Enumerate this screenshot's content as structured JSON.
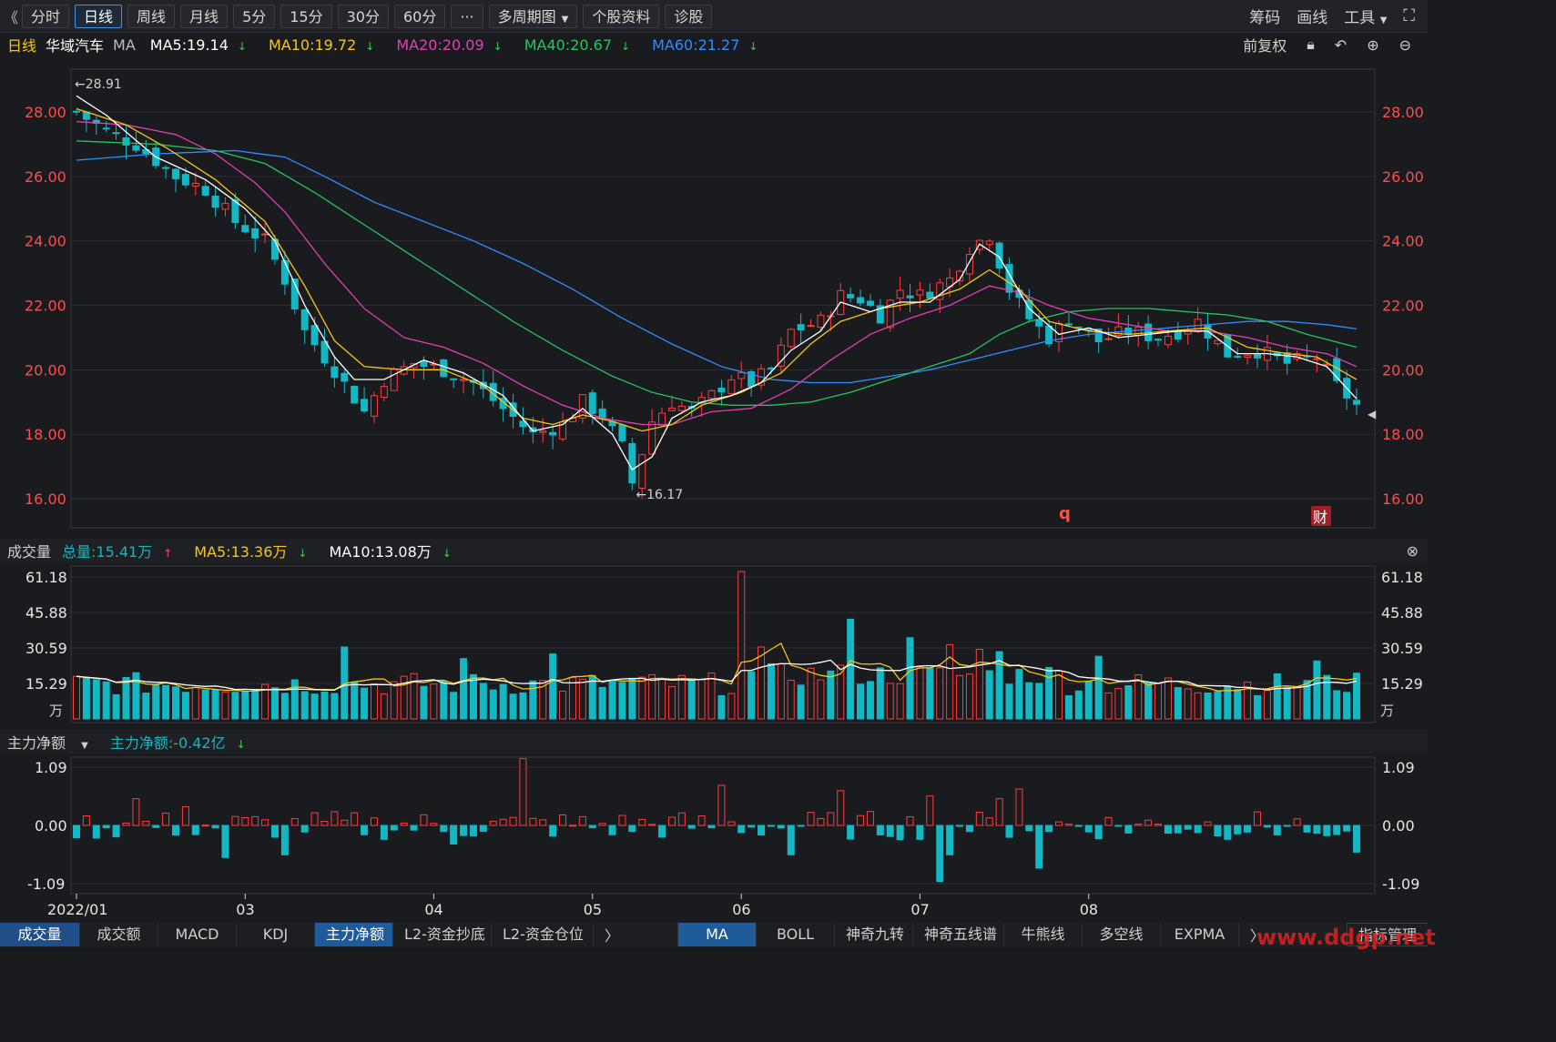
{
  "toolbar": {
    "back_icon": "《",
    "periods": [
      "分时",
      "日线",
      "周线",
      "月线",
      "5分",
      "15分",
      "30分",
      "60分"
    ],
    "active_period": "日线",
    "more_label": "···",
    "multi_period_label": "多周期图",
    "stock_info_label": "个股资料",
    "diagnose_label": "诊股",
    "chips_label": "筹码",
    "draw_label": "画线",
    "tools_label": "工具"
  },
  "ma_legend": {
    "period": "日线",
    "stock_name": "华域汽车",
    "ma_label": "MA",
    "items": [
      {
        "text": "MA5:19.14",
        "color": "#ffffff",
        "dir": "down"
      },
      {
        "text": "MA10:19.72",
        "color": "#f5c518",
        "dir": "down"
      },
      {
        "text": "MA20:20.09",
        "color": "#e040b0",
        "dir": "down"
      },
      {
        "text": "MA40:20.67",
        "color": "#22c55e",
        "dir": "down"
      },
      {
        "text": "MA60:21.27",
        "color": "#2f8cff",
        "dir": "down"
      }
    ],
    "adjust_label": "前复权"
  },
  "price_chart": {
    "y_ticks": [
      "28.00",
      "26.00",
      "24.00",
      "22.00",
      "20.00",
      "18.00",
      "16.00"
    ],
    "high_marker": "28.91",
    "low_marker": "16.17",
    "q_marker": "q",
    "cai_marker": "财"
  },
  "volume_legend": {
    "title": "成交量",
    "total": "总量:15.41万",
    "ma5": "MA5:13.36万",
    "ma10": "MA10:13.08万"
  },
  "volume_chart": {
    "y_ticks": [
      "61.18",
      "45.88",
      "30.59",
      "15.29"
    ],
    "unit": "万"
  },
  "flow_legend": {
    "title": "主力净额",
    "value": "主力净额:-0.42亿"
  },
  "flow_chart": {
    "y_ticks": [
      "1.09",
      "0.00",
      "-1.09"
    ]
  },
  "x_axis": [
    "2022/01",
    "03",
    "04",
    "05",
    "06",
    "07",
    "08"
  ],
  "bottom_tabs_left": [
    "成交量",
    "成交额",
    "MACD",
    "KDJ",
    "主力净额",
    "L2-资金抄底",
    "L2-资金仓位"
  ],
  "bottom_tabs_right": [
    "MA",
    "BOLL",
    "神奇九转",
    "神奇五线谱",
    "牛熊线",
    "多空线",
    "EXPMA"
  ],
  "indicator_mgmt_label": "指标管理",
  "watermark": "www.ddgp.net",
  "chart_data": {
    "type": "candlestick",
    "ylim": [
      15.6,
      28.9
    ],
    "days": 130,
    "month_labels": [
      {
        "label": "2022/01",
        "day": 0
      },
      {
        "label": "03",
        "day": 17
      },
      {
        "label": "04",
        "day": 36
      },
      {
        "label": "05",
        "day": 52
      },
      {
        "label": "06",
        "day": 67
      },
      {
        "label": "07",
        "day": 85
      },
      {
        "label": "08",
        "day": 102
      }
    ],
    "close_anchors": [
      [
        0,
        28.0
      ],
      [
        3,
        27.4
      ],
      [
        6,
        27.0
      ],
      [
        10,
        26.0
      ],
      [
        13,
        25.6
      ],
      [
        16,
        24.6
      ],
      [
        19,
        24.0
      ],
      [
        21,
        22.8
      ],
      [
        23,
        21.2
      ],
      [
        26,
        20.0
      ],
      [
        29,
        18.7
      ],
      [
        31,
        19.7
      ],
      [
        34,
        20.2
      ],
      [
        37,
        20.0
      ],
      [
        40,
        19.6
      ],
      [
        43,
        18.8
      ],
      [
        46,
        18.0
      ],
      [
        49,
        18.3
      ],
      [
        51,
        19.0
      ],
      [
        53,
        18.6
      ],
      [
        55,
        17.6
      ],
      [
        56,
        16.5
      ],
      [
        58,
        18.4
      ],
      [
        60,
        19.0
      ],
      [
        62,
        18.7
      ],
      [
        64,
        19.2
      ],
      [
        66,
        19.8
      ],
      [
        68,
        19.6
      ],
      [
        70,
        20.0
      ],
      [
        72,
        21.2
      ],
      [
        75,
        21.5
      ],
      [
        77,
        22.3
      ],
      [
        79,
        22.2
      ],
      [
        81,
        21.7
      ],
      [
        83,
        22.5
      ],
      [
        85,
        22.3
      ],
      [
        88,
        22.8
      ],
      [
        90,
        23.8
      ],
      [
        92,
        24.2
      ],
      [
        94,
        22.5
      ],
      [
        96,
        21.6
      ],
      [
        98,
        21.0
      ],
      [
        100,
        21.6
      ],
      [
        103,
        20.9
      ],
      [
        106,
        21.2
      ],
      [
        109,
        21.0
      ],
      [
        111,
        21.2
      ],
      [
        113,
        21.5
      ],
      [
        116,
        20.5
      ],
      [
        119,
        20.6
      ],
      [
        122,
        20.2
      ],
      [
        125,
        20.4
      ],
      [
        127,
        19.5
      ],
      [
        129,
        18.9
      ]
    ],
    "ma5": [
      [
        0,
        28.5
      ],
      [
        3,
        27.9
      ],
      [
        8,
        26.6
      ],
      [
        13,
        25.9
      ],
      [
        17,
        25.0
      ],
      [
        20,
        24.0
      ],
      [
        23,
        22.0
      ],
      [
        26,
        20.4
      ],
      [
        28,
        19.7
      ],
      [
        31,
        19.7
      ],
      [
        35,
        20.3
      ],
      [
        39,
        19.9
      ],
      [
        43,
        19.2
      ],
      [
        46,
        18.1
      ],
      [
        49,
        18.3
      ],
      [
        51,
        18.8
      ],
      [
        54,
        18.0
      ],
      [
        56,
        16.9
      ],
      [
        58,
        17.3
      ],
      [
        60,
        18.5
      ],
      [
        63,
        19.0
      ],
      [
        66,
        19.2
      ],
      [
        69,
        19.6
      ],
      [
        72,
        20.6
      ],
      [
        75,
        21.2
      ],
      [
        77,
        22.1
      ],
      [
        80,
        21.8
      ],
      [
        83,
        22.1
      ],
      [
        86,
        22.1
      ],
      [
        89,
        22.8
      ],
      [
        91,
        23.9
      ],
      [
        93,
        23.5
      ],
      [
        96,
        21.9
      ],
      [
        99,
        21.1
      ],
      [
        102,
        21.3
      ],
      [
        105,
        21.0
      ],
      [
        108,
        21.1
      ],
      [
        111,
        21.2
      ],
      [
        114,
        21.2
      ],
      [
        117,
        20.5
      ],
      [
        120,
        20.5
      ],
      [
        123,
        20.4
      ],
      [
        126,
        20.1
      ],
      [
        129,
        19.1
      ]
    ],
    "ma10": [
      [
        0,
        28.1
      ],
      [
        5,
        27.6
      ],
      [
        9,
        26.9
      ],
      [
        14,
        25.9
      ],
      [
        19,
        24.6
      ],
      [
        23,
        22.6
      ],
      [
        26,
        20.9
      ],
      [
        29,
        20.1
      ],
      [
        33,
        20.0
      ],
      [
        37,
        20.0
      ],
      [
        41,
        19.5
      ],
      [
        45,
        18.5
      ],
      [
        48,
        18.3
      ],
      [
        51,
        18.6
      ],
      [
        54,
        18.4
      ],
      [
        57,
        18.1
      ],
      [
        60,
        18.3
      ],
      [
        63,
        18.9
      ],
      [
        67,
        19.3
      ],
      [
        71,
        19.9
      ],
      [
        74,
        20.8
      ],
      [
        77,
        21.5
      ],
      [
        81,
        21.9
      ],
      [
        85,
        22.1
      ],
      [
        89,
        22.5
      ],
      [
        92,
        23.1
      ],
      [
        95,
        22.5
      ],
      [
        98,
        21.5
      ],
      [
        102,
        21.2
      ],
      [
        106,
        21.1
      ],
      [
        110,
        21.2
      ],
      [
        114,
        21.3
      ],
      [
        118,
        20.7
      ],
      [
        122,
        20.5
      ],
      [
        125,
        20.4
      ],
      [
        129,
        19.7
      ]
    ],
    "ma20": [
      [
        0,
        27.7
      ],
      [
        5,
        27.6
      ],
      [
        10,
        27.3
      ],
      [
        14,
        26.7
      ],
      [
        18,
        25.8
      ],
      [
        21,
        24.9
      ],
      [
        25,
        23.3
      ],
      [
        29,
        21.9
      ],
      [
        33,
        21.0
      ],
      [
        37,
        20.7
      ],
      [
        41,
        20.2
      ],
      [
        45,
        19.5
      ],
      [
        49,
        18.9
      ],
      [
        53,
        18.5
      ],
      [
        57,
        18.3
      ],
      [
        60,
        18.3
      ],
      [
        64,
        18.7
      ],
      [
        68,
        18.8
      ],
      [
        72,
        19.4
      ],
      [
        76,
        20.3
      ],
      [
        80,
        21.1
      ],
      [
        84,
        21.6
      ],
      [
        88,
        22.0
      ],
      [
        92,
        22.6
      ],
      [
        95,
        22.4
      ],
      [
        98,
        22.0
      ],
      [
        102,
        21.6
      ],
      [
        106,
        21.4
      ],
      [
        110,
        21.2
      ],
      [
        114,
        21.2
      ],
      [
        118,
        21.0
      ],
      [
        122,
        20.7
      ],
      [
        126,
        20.5
      ],
      [
        129,
        20.1
      ]
    ],
    "ma40": [
      [
        0,
        27.1
      ],
      [
        8,
        27.0
      ],
      [
        14,
        26.8
      ],
      [
        19,
        26.4
      ],
      [
        24,
        25.5
      ],
      [
        29,
        24.5
      ],
      [
        34,
        23.5
      ],
      [
        39,
        22.5
      ],
      [
        44,
        21.5
      ],
      [
        49,
        20.6
      ],
      [
        54,
        19.8
      ],
      [
        58,
        19.3
      ],
      [
        62,
        19.0
      ],
      [
        66,
        18.9
      ],
      [
        70,
        18.9
      ],
      [
        74,
        19.0
      ],
      [
        78,
        19.3
      ],
      [
        82,
        19.7
      ],
      [
        86,
        20.1
      ],
      [
        90,
        20.5
      ],
      [
        93,
        21.1
      ],
      [
        96,
        21.5
      ],
      [
        100,
        21.8
      ],
      [
        104,
        21.9
      ],
      [
        108,
        21.9
      ],
      [
        112,
        21.8
      ],
      [
        116,
        21.7
      ],
      [
        120,
        21.5
      ],
      [
        124,
        21.1
      ],
      [
        129,
        20.7
      ]
    ],
    "ma60": [
      [
        0,
        26.5
      ],
      [
        8,
        26.7
      ],
      [
        16,
        26.8
      ],
      [
        21,
        26.6
      ],
      [
        25,
        26.0
      ],
      [
        30,
        25.2
      ],
      [
        35,
        24.6
      ],
      [
        40,
        24.0
      ],
      [
        45,
        23.3
      ],
      [
        50,
        22.5
      ],
      [
        55,
        21.6
      ],
      [
        60,
        20.8
      ],
      [
        65,
        20.1
      ],
      [
        70,
        19.7
      ],
      [
        74,
        19.6
      ],
      [
        78,
        19.6
      ],
      [
        82,
        19.8
      ],
      [
        86,
        20.0
      ],
      [
        90,
        20.3
      ],
      [
        94,
        20.6
      ],
      [
        98,
        20.9
      ],
      [
        102,
        21.1
      ],
      [
        106,
        21.2
      ],
      [
        110,
        21.3
      ],
      [
        114,
        21.4
      ],
      [
        118,
        21.5
      ],
      [
        122,
        21.5
      ],
      [
        126,
        21.4
      ],
      [
        129,
        21.27
      ]
    ],
    "volume_max": 64,
    "volume_spikes": [
      [
        67,
        64
      ],
      [
        78,
        43
      ],
      [
        84,
        35
      ],
      [
        88,
        32
      ],
      [
        48,
        28
      ],
      [
        27,
        31
      ],
      [
        103,
        27
      ],
      [
        39,
        26
      ],
      [
        125,
        25
      ],
      [
        57,
        18
      ],
      [
        91,
        30
      ],
      [
        93,
        29
      ],
      [
        69,
        31
      ]
    ],
    "flow_ylim": [
      -1.2,
      1.25
    ],
    "flow_spikes": [
      [
        45,
        1.25
      ],
      [
        38,
        -0.35
      ],
      [
        65,
        0.75
      ],
      [
        72,
        -0.55
      ],
      [
        77,
        0.65
      ],
      [
        87,
        -1.05
      ],
      [
        88,
        -0.55
      ],
      [
        95,
        0.68
      ],
      [
        97,
        -0.8
      ],
      [
        93,
        0.5
      ],
      [
        86,
        0.55
      ],
      [
        11,
        0.35
      ],
      [
        6,
        0.5
      ],
      [
        21,
        -0.55
      ],
      [
        15,
        -0.6
      ]
    ]
  }
}
